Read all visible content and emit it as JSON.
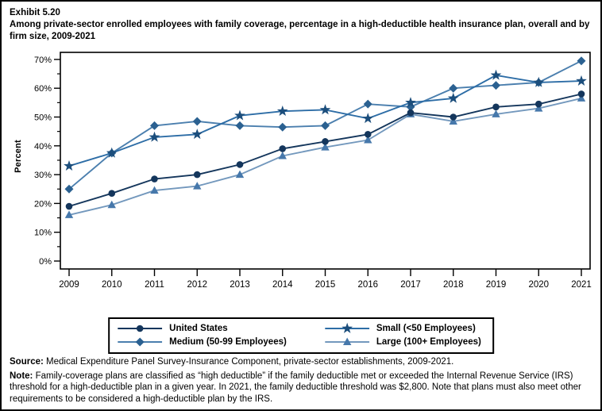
{
  "figure": {
    "exhibit_label": "Exhibit 5.20",
    "title": "Among private-sector enrolled employees with family coverage, percentage in a high-deductible health insurance plan, overall and by firm size, 2009-2021"
  },
  "chart_data": {
    "type": "line",
    "title": "Among private-sector enrolled employees with family coverage, percentage in a high-deductible health insurance plan, overall and by firm size, 2009-2021",
    "xlabel": "",
    "ylabel": "Percent",
    "ylim": [
      0,
      70
    ],
    "y_major_tick_step": 10,
    "y_minor_tick_step": 5,
    "y_tick_labels": [
      "0%",
      "10%",
      "20%",
      "30%",
      "40%",
      "50%",
      "60%",
      "70%"
    ],
    "grid": false,
    "legend_position": "bottom",
    "categories": [
      "2009",
      "2010",
      "2011",
      "2012",
      "2013",
      "2014",
      "2015",
      "2016",
      "2017",
      "2018",
      "2019",
      "2020",
      "2021"
    ],
    "series": [
      {
        "name": "United States",
        "marker": "circle",
        "marker_color": "#14365c",
        "line_color": "#14365c",
        "values": [
          19,
          23.5,
          28.5,
          30,
          33.5,
          39,
          41.5,
          44,
          51.5,
          50,
          53.5,
          54.5,
          58
        ]
      },
      {
        "name": "Small (<50 Employees)",
        "marker": "star",
        "marker_color": "#1c4e7c",
        "line_color": "#2d6da6",
        "values": [
          33,
          37.5,
          43,
          44,
          50.5,
          52,
          52.5,
          49.5,
          55,
          56.5,
          64.5,
          62,
          62.5
        ]
      },
      {
        "name": "Medium (50-99 Employees)",
        "marker": "diamond",
        "marker_color": "#2b6191",
        "line_color": "#4b7fae",
        "values": [
          25,
          37.5,
          47,
          48.5,
          47,
          46.5,
          47,
          54.5,
          53.5,
          60,
          61,
          62,
          69.5
        ]
      },
      {
        "name": "Large (100+ Employees)",
        "marker": "triangle",
        "marker_color": "#4678ab",
        "line_color": "#7398bd",
        "values": [
          16,
          19.5,
          24.5,
          26,
          30,
          36.5,
          39.5,
          42,
          51,
          48.5,
          51,
          53,
          56.5
        ]
      }
    ],
    "draw_order": [
      2,
      1,
      3,
      0
    ],
    "legend_order": [
      0,
      1,
      2,
      3
    ]
  },
  "footnotes": {
    "source_label": "Source:",
    "source_text": " Medical Expenditure Panel Survey-Insurance Component, private-sector establishments, 2009-2021.",
    "note_label": "Note:",
    "note_text": " Family-coverage plans are classified as “high deductible” if the family deductible met or exceeded the Internal Revenue Service (IRS) threshold for a high-deductible plan in a given year. In 2021, the family deductible threshold was $2,800. Note that plans must also meet other requirements to be considered a high-deductible plan by the IRS."
  }
}
